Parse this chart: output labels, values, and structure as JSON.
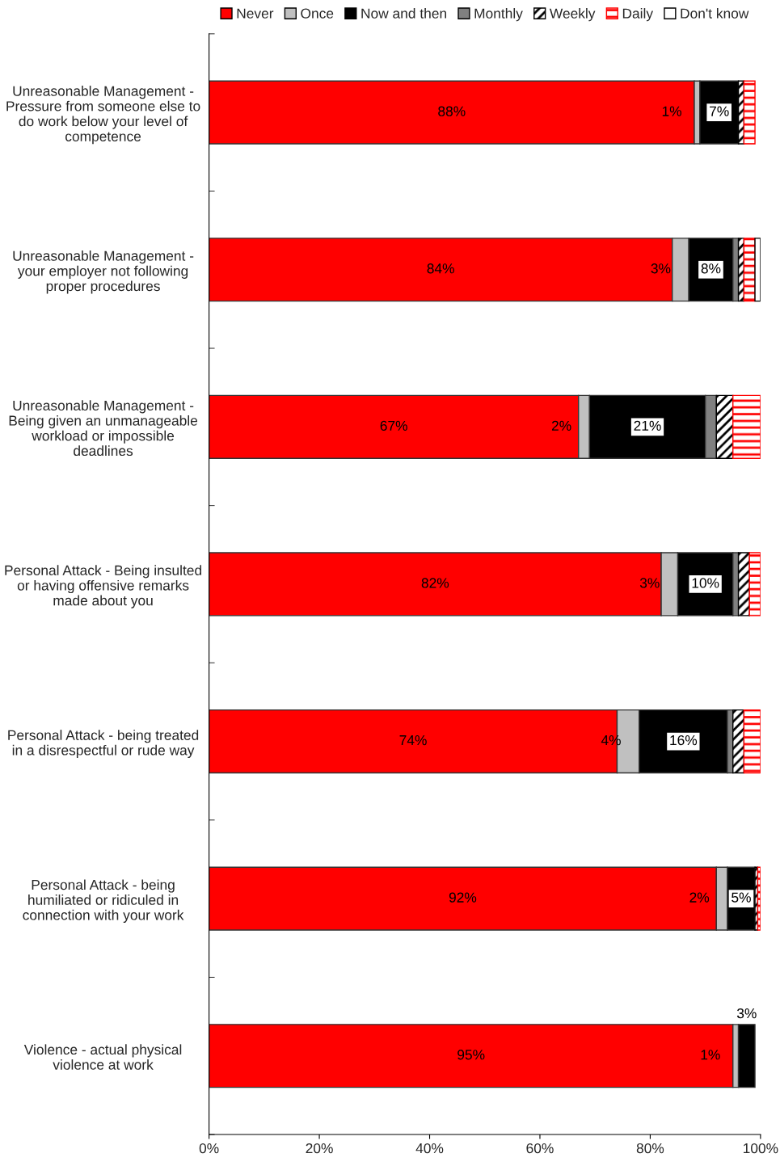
{
  "chart_data": {
    "type": "bar",
    "orientation": "horizontal",
    "stacked": true,
    "categories": [
      "Unreasonable Management -\nPressure from someone else to\ndo work below your level of\ncompetence",
      "Unreasonable Management -\nyour employer not following\nproper procedures",
      "Unreasonable Management -\nBeing given an unmanageable\nworkload or impossible\ndeadlines",
      "Personal Attack - Being insulted\nor having offensive remarks\nmade about you",
      "Personal Attack - being treated\nin a disrespectful or rude way",
      "Personal Attack - being\nhumiliated or ridiculed in\nconnection with your work",
      "Violence - actual physical\nviolence at work"
    ],
    "series": [
      {
        "name": "Never",
        "color": "#ff0000",
        "values": [
          88,
          84,
          67,
          82,
          74,
          92,
          95
        ],
        "value_labels": [
          "88%",
          "84%",
          "67%",
          "82%",
          "74%",
          "92%",
          "95%"
        ]
      },
      {
        "name": "Once",
        "color": "#c0c0c0",
        "values": [
          1,
          3,
          2,
          3,
          4,
          2,
          1
        ],
        "value_labels": [
          "1%",
          "3%",
          "2%",
          "3%",
          "4%",
          "2%",
          "1%"
        ]
      },
      {
        "name": "Now and then",
        "color": "#000000",
        "values": [
          7,
          8,
          21,
          10,
          16,
          5,
          3
        ],
        "value_labels": [
          "7%",
          "8%",
          "21%",
          "10%",
          "16%",
          "5%",
          "3%"
        ]
      },
      {
        "name": "Monthly",
        "color": "#808080",
        "values": [
          0,
          1,
          2,
          1,
          1,
          0,
          0
        ]
      },
      {
        "name": "Weekly",
        "color": "#000000",
        "values": [
          1,
          1,
          3,
          2,
          2,
          0.5,
          0
        ]
      },
      {
        "name": "Daily",
        "color": "#ff0000",
        "values": [
          2,
          2,
          5,
          2,
          3,
          0.5,
          0
        ]
      },
      {
        "name": "Don't know",
        "color": "#ffffff",
        "values": [
          0,
          1,
          0,
          0,
          0,
          0,
          0
        ]
      }
    ],
    "xlim": [
      0,
      100
    ],
    "xticks": [
      {
        "value": 0,
        "label": "0%"
      },
      {
        "value": 20,
        "label": "20%"
      },
      {
        "value": 40,
        "label": "40%"
      },
      {
        "value": 60,
        "label": "60%"
      },
      {
        "value": 80,
        "label": "80%"
      },
      {
        "value": 100,
        "label": "100%"
      }
    ],
    "legend": "top",
    "grid": false
  }
}
